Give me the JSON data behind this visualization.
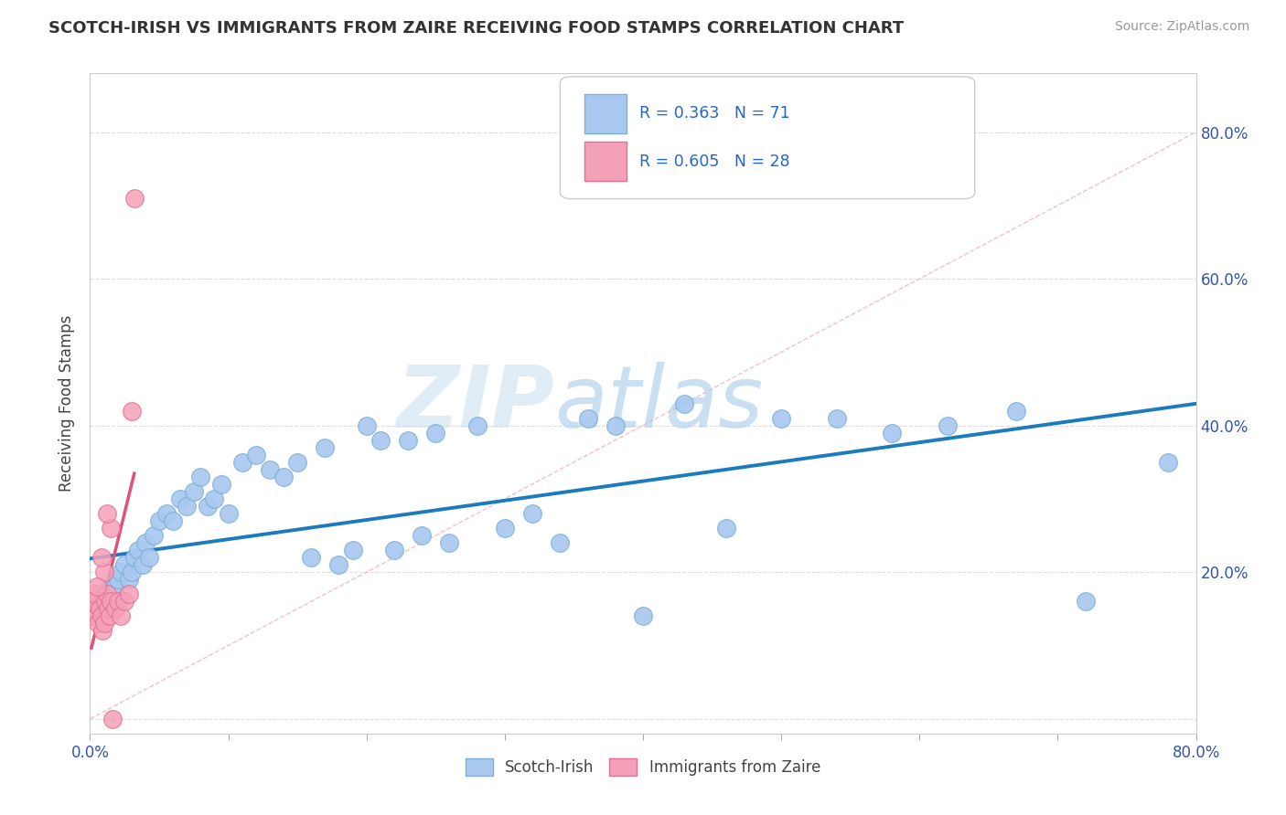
{
  "title": "SCOTCH-IRISH VS IMMIGRANTS FROM ZAIRE RECEIVING FOOD STAMPS CORRELATION CHART",
  "source": "Source: ZipAtlas.com",
  "ylabel": "Receiving Food Stamps",
  "xrange": [
    0.0,
    0.8
  ],
  "yrange": [
    -0.02,
    0.88
  ],
  "color_blue_scatter": "#a8c8f0",
  "color_blue_edge": "#7bafd4",
  "color_pink_scatter": "#f4a0b8",
  "color_pink_edge": "#e07090",
  "color_blue_line": "#1a7bbf",
  "color_pink_line": "#e0507a",
  "color_dashed": "#f0b8c8",
  "figsize": [
    14.06,
    8.92
  ],
  "dpi": 100,
  "si_x": [
    0.001,
    0.002,
    0.003,
    0.004,
    0.005,
    0.006,
    0.007,
    0.008,
    0.009,
    0.01,
    0.011,
    0.012,
    0.013,
    0.014,
    0.015,
    0.016,
    0.018,
    0.02,
    0.022,
    0.025,
    0.028,
    0.03,
    0.032,
    0.035,
    0.038,
    0.04,
    0.043,
    0.046,
    0.05,
    0.055,
    0.06,
    0.065,
    0.07,
    0.075,
    0.08,
    0.085,
    0.09,
    0.095,
    0.1,
    0.11,
    0.12,
    0.13,
    0.14,
    0.15,
    0.16,
    0.17,
    0.18,
    0.19,
    0.2,
    0.21,
    0.22,
    0.23,
    0.24,
    0.25,
    0.26,
    0.28,
    0.3,
    0.32,
    0.34,
    0.36,
    0.38,
    0.4,
    0.43,
    0.46,
    0.5,
    0.54,
    0.58,
    0.62,
    0.67,
    0.72,
    0.78
  ],
  "si_y": [
    0.14,
    0.15,
    0.15,
    0.16,
    0.14,
    0.15,
    0.16,
    0.14,
    0.15,
    0.16,
    0.17,
    0.15,
    0.17,
    0.16,
    0.18,
    0.17,
    0.18,
    0.19,
    0.2,
    0.21,
    0.19,
    0.2,
    0.22,
    0.23,
    0.21,
    0.24,
    0.22,
    0.25,
    0.27,
    0.28,
    0.27,
    0.3,
    0.29,
    0.31,
    0.33,
    0.29,
    0.3,
    0.32,
    0.28,
    0.35,
    0.36,
    0.34,
    0.33,
    0.35,
    0.22,
    0.37,
    0.21,
    0.23,
    0.4,
    0.38,
    0.23,
    0.38,
    0.25,
    0.39,
    0.24,
    0.4,
    0.26,
    0.28,
    0.24,
    0.41,
    0.4,
    0.14,
    0.43,
    0.26,
    0.41,
    0.41,
    0.39,
    0.4,
    0.42,
    0.16,
    0.35
  ],
  "z_x": [
    0.001,
    0.002,
    0.003,
    0.004,
    0.005,
    0.006,
    0.007,
    0.008,
    0.009,
    0.01,
    0.011,
    0.012,
    0.013,
    0.014,
    0.015,
    0.016,
    0.018,
    0.02,
    0.022,
    0.025,
    0.028,
    0.032,
    0.015,
    0.01,
    0.005,
    0.008,
    0.012,
    0.03
  ],
  "z_y": [
    0.14,
    0.16,
    0.15,
    0.17,
    0.14,
    0.13,
    0.15,
    0.14,
    0.12,
    0.13,
    0.16,
    0.17,
    0.15,
    0.14,
    0.16,
    0.0,
    0.15,
    0.16,
    0.14,
    0.16,
    0.17,
    0.71,
    0.26,
    0.2,
    0.18,
    0.22,
    0.28,
    0.42
  ]
}
